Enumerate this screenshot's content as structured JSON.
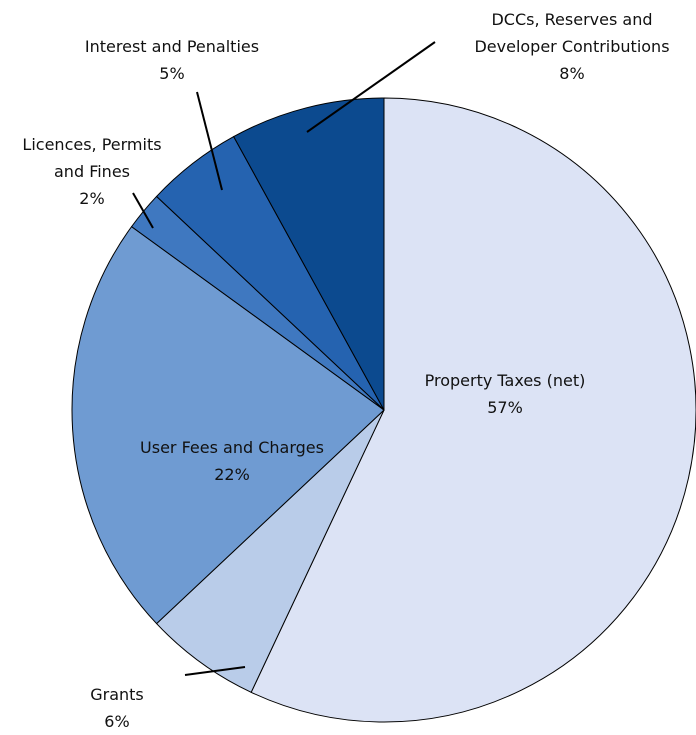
{
  "chart_data": {
    "type": "pie",
    "categories": [
      "Property Taxes (net)",
      "Grants",
      "User Fees and Charges",
      "Licences, Permits and Fines",
      "Interest and Penalties",
      "DCCs, Reserves and Developer Contributions"
    ],
    "values": [
      57,
      6,
      22,
      2,
      5,
      8
    ],
    "value_labels": [
      "57%",
      "6%",
      "22%",
      "2%",
      "5%",
      "8%"
    ],
    "colors": [
      "#dce3f5",
      "#b9cce9",
      "#6f9bd2",
      "#3f78c0",
      "#2563b0",
      "#0c4a8f"
    ]
  }
}
